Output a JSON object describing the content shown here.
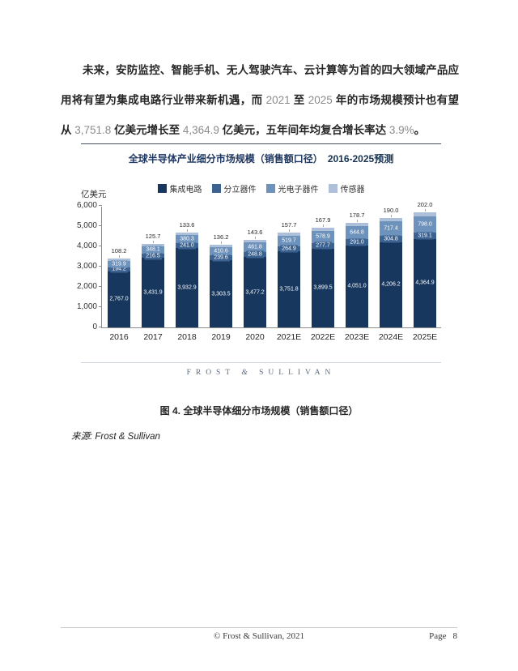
{
  "paragraph": {
    "segments": [
      {
        "t": "未来，安防监控、智能手机、无人驾驶汽车、云计算等为首的四大领域产品应用将有望为集成电路行业带来新机遇，而 ",
        "s": "cn"
      },
      {
        "t": "2021",
        "s": "num"
      },
      {
        "t": " 至 ",
        "s": "cn"
      },
      {
        "t": "2025",
        "s": "num"
      },
      {
        "t": " 年的市场规模预计也有望从 ",
        "s": "cn"
      },
      {
        "t": "3,751.8",
        "s": "num"
      },
      {
        "t": " 亿美元增长至 ",
        "s": "cn"
      },
      {
        "t": "4,364.9",
        "s": "num"
      },
      {
        "t": " 亿美元，五年间年均复合增长率达 ",
        "s": "cn"
      },
      {
        "t": "3.9%",
        "s": "num"
      },
      {
        "t": "。",
        "s": "cn"
      }
    ]
  },
  "chart": {
    "title_main": "全球半导体产业细分市场规模（销售额口径）",
    "title_suffix": "2016-2025预测",
    "unit_label": "亿美元",
    "logo_text": "FROST & SULLIVAN"
  },
  "chart_data": {
    "type": "bar",
    "stacked": true,
    "title": "全球半导体产业细分市场规模（销售额口径）2016-2025预测",
    "ylabel": "亿美元",
    "ylim": [
      0,
      6000
    ],
    "ytick_step": 1000,
    "grid": false,
    "legend_position": "top",
    "categories": [
      "2016",
      "2017",
      "2018",
      "2019",
      "2020",
      "2021E",
      "2022E",
      "2023E",
      "2024E",
      "2025E"
    ],
    "series": [
      {
        "name": "集成电路",
        "color": "#17375e",
        "values": [
          2767.0,
          3431.9,
          3932.9,
          3303.5,
          3477.2,
          3751.8,
          3899.5,
          4051.0,
          4206.2,
          4364.9
        ]
      },
      {
        "name": "分立器件",
        "color": "#3b6291",
        "values": [
          194.2,
          216.5,
          241.0,
          239.6,
          248.8,
          264.9,
          277.7,
          291.0,
          304.8,
          319.1
        ]
      },
      {
        "name": "光电子器件",
        "color": "#6d92bb",
        "values": [
          319.9,
          348.1,
          380.3,
          410.6,
          461.8,
          519.7,
          578.9,
          644.8,
          717.4,
          798.0
        ]
      },
      {
        "name": "传感器",
        "color": "#aebfd9",
        "values": [
          108.2,
          125.7,
          133.6,
          136.2,
          143.6,
          157.7,
          167.9,
          178.7,
          190.0,
          202.0
        ]
      }
    ]
  },
  "caption": "图 4. 全球半导体细分市场规模（销售额口径）",
  "source": {
    "label": "来源",
    "text": ": Frost & Sullivan"
  },
  "footer": {
    "copyright": "© Frost & Sullivan, 2021",
    "page_label": "Page",
    "page_number": "8"
  }
}
